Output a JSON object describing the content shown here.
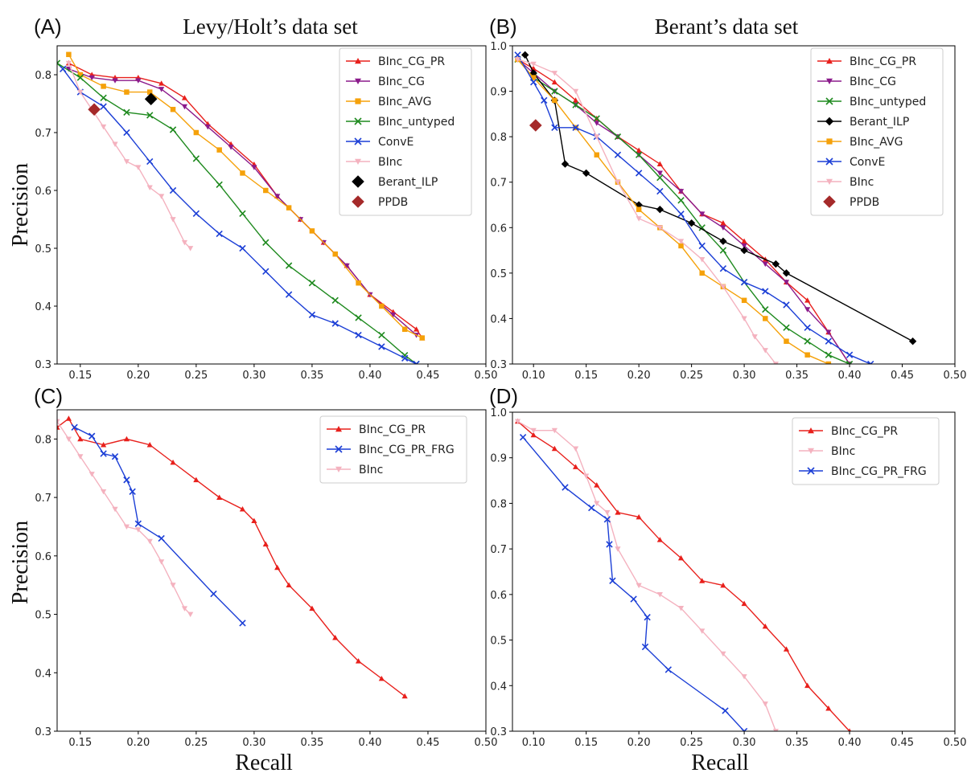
{
  "figure": {
    "panel_tags": [
      "(A)",
      "(B)",
      "(C)",
      "(D)"
    ],
    "titles": [
      "Levy/Holt’s data set",
      "Berant’s data set"
    ],
    "ylabel": "Precision",
    "xlabel": "Recall"
  },
  "chart_data": [
    {
      "panel": "(A)",
      "type": "line",
      "title": "Levy/Holt’s data set",
      "xlabel": "",
      "ylabel": "Precision",
      "xlim": [
        0.13,
        0.5
      ],
      "ylim": [
        0.3,
        0.85
      ],
      "xticks": [
        "0.15",
        "0.20",
        "0.25",
        "0.30",
        "0.35",
        "0.40",
        "0.45",
        "0.50"
      ],
      "yticks": [
        "0.3",
        "0.4",
        "0.5",
        "0.6",
        "0.7",
        "0.8"
      ],
      "legend_position": "top-right",
      "series": [
        {
          "name": "BInc_CG_PR",
          "color": "#e8201c",
          "marker": "triangle-up",
          "x": [
            0.14,
            0.16,
            0.18,
            0.2,
            0.22,
            0.24,
            0.26,
            0.28,
            0.3,
            0.32,
            0.34,
            0.36,
            0.38,
            0.4,
            0.42,
            0.44,
            0.445
          ],
          "y": [
            0.82,
            0.8,
            0.795,
            0.795,
            0.785,
            0.76,
            0.715,
            0.68,
            0.645,
            0.59,
            0.55,
            0.51,
            0.47,
            0.42,
            0.39,
            0.36,
            0.345
          ]
        },
        {
          "name": "BInc_CG",
          "color": "#8b1a8b",
          "marker": "triangle-down",
          "x": [
            0.14,
            0.16,
            0.18,
            0.2,
            0.22,
            0.24,
            0.26,
            0.28,
            0.3,
            0.32,
            0.34,
            0.36,
            0.38,
            0.4,
            0.42,
            0.44
          ],
          "y": [
            0.81,
            0.795,
            0.79,
            0.79,
            0.775,
            0.745,
            0.71,
            0.675,
            0.64,
            0.59,
            0.55,
            0.51,
            0.47,
            0.42,
            0.385,
            0.35
          ]
        },
        {
          "name": "BInc_AVG",
          "color": "#f5a10a",
          "marker": "square",
          "x": [
            0.14,
            0.15,
            0.17,
            0.19,
            0.21,
            0.23,
            0.25,
            0.27,
            0.29,
            0.31,
            0.33,
            0.35,
            0.37,
            0.39,
            0.41,
            0.43,
            0.445
          ],
          "y": [
            0.835,
            0.8,
            0.78,
            0.77,
            0.77,
            0.74,
            0.7,
            0.67,
            0.63,
            0.6,
            0.57,
            0.53,
            0.49,
            0.44,
            0.4,
            0.36,
            0.345
          ]
        },
        {
          "name": "BInc_untyped",
          "color": "#1f8a1f",
          "marker": "x",
          "x": [
            0.13,
            0.15,
            0.17,
            0.19,
            0.21,
            0.23,
            0.25,
            0.27,
            0.29,
            0.31,
            0.33,
            0.35,
            0.37,
            0.39,
            0.41,
            0.43,
            0.44
          ],
          "y": [
            0.82,
            0.795,
            0.76,
            0.735,
            0.73,
            0.705,
            0.655,
            0.61,
            0.56,
            0.51,
            0.47,
            0.44,
            0.41,
            0.38,
            0.35,
            0.315,
            0.3
          ]
        },
        {
          "name": "ConvE",
          "color": "#1c3fd6",
          "marker": "x",
          "x": [
            0.135,
            0.15,
            0.17,
            0.19,
            0.21,
            0.23,
            0.25,
            0.27,
            0.29,
            0.31,
            0.33,
            0.35,
            0.37,
            0.39,
            0.41,
            0.43,
            0.44
          ],
          "y": [
            0.81,
            0.77,
            0.745,
            0.7,
            0.65,
            0.6,
            0.56,
            0.525,
            0.5,
            0.46,
            0.42,
            0.385,
            0.37,
            0.35,
            0.33,
            0.31,
            0.3
          ]
        },
        {
          "name": "BInc",
          "color": "#f4b2bf",
          "marker": "triangle-down",
          "x": [
            0.14,
            0.15,
            0.16,
            0.17,
            0.18,
            0.19,
            0.2,
            0.21,
            0.22,
            0.23,
            0.24,
            0.245
          ],
          "y": [
            0.82,
            0.77,
            0.74,
            0.71,
            0.68,
            0.65,
            0.64,
            0.605,
            0.59,
            0.55,
            0.51,
            0.5
          ]
        },
        {
          "name": "Berant_ILP",
          "color": "#000000",
          "marker": "diamond",
          "x": [
            0.211
          ],
          "y": [
            0.758
          ]
        },
        {
          "name": "PPDB",
          "color": "#a52a2a",
          "marker": "diamond",
          "x": [
            0.162
          ],
          "y": [
            0.74
          ]
        }
      ]
    },
    {
      "panel": "(B)",
      "type": "line",
      "title": "Berant’s data set",
      "xlabel": "",
      "ylabel": "",
      "xlim": [
        0.08,
        0.5
      ],
      "ylim": [
        0.3,
        1.0
      ],
      "xticks": [
        "0.10",
        "0.15",
        "0.20",
        "0.25",
        "0.30",
        "0.35",
        "0.40",
        "0.45",
        "0.50"
      ],
      "yticks": [
        "0.3",
        "0.4",
        "0.5",
        "0.6",
        "0.7",
        "0.8",
        "0.9",
        "1.0"
      ],
      "legend_position": "top-right",
      "series": [
        {
          "name": "BInc_CG_PR",
          "color": "#e8201c",
          "marker": "triangle-up",
          "x": [
            0.085,
            0.1,
            0.12,
            0.14,
            0.16,
            0.18,
            0.2,
            0.22,
            0.24,
            0.26,
            0.28,
            0.3,
            0.32,
            0.34,
            0.36,
            0.38,
            0.4
          ],
          "y": [
            0.97,
            0.95,
            0.92,
            0.88,
            0.84,
            0.8,
            0.77,
            0.74,
            0.68,
            0.63,
            0.61,
            0.57,
            0.53,
            0.48,
            0.44,
            0.37,
            0.3
          ]
        },
        {
          "name": "BInc_CG",
          "color": "#8b1a8b",
          "marker": "triangle-down",
          "x": [
            0.085,
            0.1,
            0.12,
            0.14,
            0.16,
            0.18,
            0.2,
            0.22,
            0.24,
            0.26,
            0.28,
            0.3,
            0.32,
            0.34,
            0.36,
            0.38,
            0.4
          ],
          "y": [
            0.97,
            0.94,
            0.9,
            0.87,
            0.83,
            0.8,
            0.76,
            0.72,
            0.68,
            0.63,
            0.6,
            0.56,
            0.52,
            0.48,
            0.42,
            0.37,
            0.3
          ]
        },
        {
          "name": "BInc_untyped",
          "color": "#1f8a1f",
          "marker": "x",
          "x": [
            0.085,
            0.1,
            0.12,
            0.14,
            0.16,
            0.18,
            0.2,
            0.22,
            0.24,
            0.26,
            0.28,
            0.3,
            0.32,
            0.34,
            0.36,
            0.38,
            0.4
          ],
          "y": [
            0.97,
            0.93,
            0.9,
            0.87,
            0.84,
            0.8,
            0.76,
            0.71,
            0.66,
            0.6,
            0.55,
            0.48,
            0.42,
            0.38,
            0.35,
            0.32,
            0.3
          ]
        },
        {
          "name": "Berant_ILP",
          "color": "#000000",
          "marker": "diamond",
          "x": [
            0.092,
            0.1,
            0.12,
            0.13,
            0.15,
            0.2,
            0.22,
            0.25,
            0.28,
            0.3,
            0.33,
            0.34,
            0.46
          ],
          "y": [
            0.98,
            0.94,
            0.88,
            0.74,
            0.72,
            0.65,
            0.64,
            0.61,
            0.57,
            0.55,
            0.52,
            0.5,
            0.35
          ]
        },
        {
          "name": "BInc_AVG",
          "color": "#f5a10a",
          "marker": "square",
          "x": [
            0.085,
            0.1,
            0.12,
            0.14,
            0.16,
            0.18,
            0.2,
            0.22,
            0.24,
            0.26,
            0.28,
            0.3,
            0.32,
            0.34,
            0.36,
            0.38
          ],
          "y": [
            0.97,
            0.93,
            0.88,
            0.82,
            0.76,
            0.7,
            0.64,
            0.6,
            0.56,
            0.5,
            0.47,
            0.44,
            0.4,
            0.35,
            0.32,
            0.3
          ]
        },
        {
          "name": "ConvE",
          "color": "#1c3fd6",
          "marker": "x",
          "x": [
            0.085,
            0.1,
            0.11,
            0.12,
            0.14,
            0.16,
            0.18,
            0.2,
            0.22,
            0.24,
            0.26,
            0.28,
            0.3,
            0.32,
            0.34,
            0.36,
            0.38,
            0.4,
            0.42
          ],
          "y": [
            0.98,
            0.92,
            0.88,
            0.82,
            0.82,
            0.8,
            0.76,
            0.72,
            0.68,
            0.63,
            0.56,
            0.51,
            0.48,
            0.46,
            0.43,
            0.38,
            0.35,
            0.32,
            0.3
          ]
        },
        {
          "name": "BInc",
          "color": "#f4b2bf",
          "marker": "triangle-down",
          "x": [
            0.085,
            0.1,
            0.12,
            0.14,
            0.16,
            0.18,
            0.2,
            0.22,
            0.24,
            0.26,
            0.28,
            0.3,
            0.31,
            0.32,
            0.33
          ],
          "y": [
            0.97,
            0.96,
            0.94,
            0.9,
            0.8,
            0.7,
            0.62,
            0.6,
            0.57,
            0.53,
            0.47,
            0.4,
            0.36,
            0.33,
            0.3
          ]
        },
        {
          "name": "PPDB",
          "color": "#a52a2a",
          "marker": "diamond",
          "x": [
            0.102
          ],
          "y": [
            0.825
          ]
        }
      ]
    },
    {
      "panel": "(C)",
      "type": "line",
      "title": "",
      "xlabel": "Recall",
      "ylabel": "Precision",
      "xlim": [
        0.13,
        0.5
      ],
      "ylim": [
        0.3,
        0.85
      ],
      "xticks": [
        "0.15",
        "0.20",
        "0.25",
        "0.30",
        "0.35",
        "0.40",
        "0.45",
        "0.50"
      ],
      "yticks": [
        "0.3",
        "0.4",
        "0.5",
        "0.6",
        "0.7",
        "0.8"
      ],
      "legend_position": "top-right",
      "series": [
        {
          "name": "BInc_CG_PR",
          "color": "#e8201c",
          "marker": "triangle-up",
          "x": [
            0.13,
            0.14,
            0.15,
            0.17,
            0.19,
            0.21,
            0.23,
            0.25,
            0.27,
            0.29,
            0.3,
            0.31,
            0.32,
            0.33,
            0.35,
            0.37,
            0.39,
            0.41,
            0.43
          ],
          "y": [
            0.82,
            0.835,
            0.8,
            0.79,
            0.8,
            0.79,
            0.76,
            0.73,
            0.7,
            0.68,
            0.66,
            0.62,
            0.58,
            0.55,
            0.51,
            0.46,
            0.42,
            0.39,
            0.36
          ]
        },
        {
          "name": "BInc_CG_PR_FRG",
          "color": "#1c3fd6",
          "marker": "x",
          "x": [
            0.145,
            0.16,
            0.17,
            0.18,
            0.19,
            0.195,
            0.2,
            0.22,
            0.265,
            0.29
          ],
          "y": [
            0.82,
            0.805,
            0.775,
            0.77,
            0.73,
            0.71,
            0.655,
            0.63,
            0.535,
            0.485
          ]
        },
        {
          "name": "BInc",
          "color": "#f4b2bf",
          "marker": "triangle-down",
          "x": [
            0.13,
            0.14,
            0.15,
            0.16,
            0.17,
            0.18,
            0.19,
            0.2,
            0.21,
            0.22,
            0.23,
            0.24,
            0.245
          ],
          "y": [
            0.83,
            0.8,
            0.77,
            0.74,
            0.71,
            0.68,
            0.65,
            0.645,
            0.625,
            0.59,
            0.55,
            0.51,
            0.5
          ]
        }
      ]
    },
    {
      "panel": "(D)",
      "type": "line",
      "title": "",
      "xlabel": "Recall",
      "ylabel": "",
      "xlim": [
        0.08,
        0.5
      ],
      "ylim": [
        0.3,
        1.0
      ],
      "xticks": [
        "0.10",
        "0.15",
        "0.20",
        "0.25",
        "0.30",
        "0.35",
        "0.40",
        "0.45",
        "0.50"
      ],
      "yticks": [
        "0.3",
        "0.4",
        "0.5",
        "0.6",
        "0.7",
        "0.8",
        "0.9",
        "1.0"
      ],
      "legend_position": "top-right",
      "series": [
        {
          "name": "BInc_CG_PR",
          "color": "#e8201c",
          "marker": "triangle-up",
          "x": [
            0.085,
            0.1,
            0.12,
            0.14,
            0.16,
            0.18,
            0.2,
            0.22,
            0.24,
            0.26,
            0.28,
            0.3,
            0.32,
            0.34,
            0.36,
            0.38,
            0.4
          ],
          "y": [
            0.98,
            0.95,
            0.92,
            0.88,
            0.84,
            0.78,
            0.77,
            0.72,
            0.68,
            0.63,
            0.62,
            0.58,
            0.53,
            0.48,
            0.4,
            0.35,
            0.3
          ]
        },
        {
          "name": "BInc",
          "color": "#f4b2bf",
          "marker": "triangle-down",
          "x": [
            0.085,
            0.1,
            0.12,
            0.14,
            0.15,
            0.16,
            0.17,
            0.18,
            0.2,
            0.22,
            0.24,
            0.26,
            0.28,
            0.3,
            0.32,
            0.33
          ],
          "y": [
            0.98,
            0.96,
            0.96,
            0.92,
            0.86,
            0.8,
            0.78,
            0.7,
            0.62,
            0.6,
            0.57,
            0.52,
            0.47,
            0.42,
            0.36,
            0.3
          ]
        },
        {
          "name": "BInc_CG_PR_FRG",
          "color": "#1c3fd6",
          "marker": "x",
          "x": [
            0.09,
            0.13,
            0.155,
            0.17,
            0.172,
            0.175,
            0.195,
            0.208,
            0.206,
            0.228,
            0.282,
            0.3
          ],
          "y": [
            0.945,
            0.835,
            0.79,
            0.765,
            0.71,
            0.63,
            0.59,
            0.55,
            0.485,
            0.435,
            0.345,
            0.3
          ]
        }
      ]
    }
  ]
}
